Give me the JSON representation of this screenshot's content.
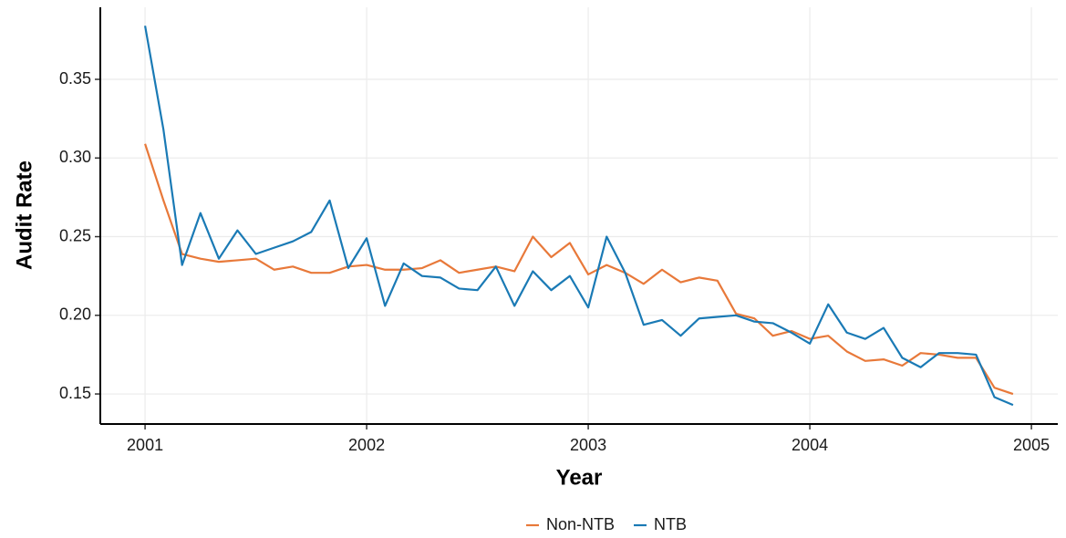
{
  "chart_data": {
    "type": "line",
    "x_label": "Year",
    "y_label": "Audit Rate",
    "x": [
      2001,
      2001.083,
      2001.167,
      2001.25,
      2001.333,
      2001.417,
      2001.5,
      2001.583,
      2001.667,
      2001.75,
      2001.833,
      2001.917,
      2002,
      2002.083,
      2002.167,
      2002.25,
      2002.333,
      2002.417,
      2002.5,
      2002.583,
      2002.667,
      2002.75,
      2002.833,
      2002.917,
      2003,
      2003.083,
      2003.167,
      2003.25,
      2003.333,
      2003.417,
      2003.5,
      2003.583,
      2003.667,
      2003.75,
      2003.833,
      2003.917,
      2004,
      2004.083,
      2004.167,
      2004.25,
      2004.333,
      2004.417,
      2004.5,
      2004.583,
      2004.667,
      2004.75,
      2004.833,
      2004.917
    ],
    "series": [
      {
        "name": "Non-NTB",
        "color": "#e8793a",
        "values": [
          0.309,
          0.273,
          0.239,
          0.236,
          0.234,
          0.235,
          0.236,
          0.229,
          0.231,
          0.227,
          0.227,
          0.231,
          0.232,
          0.229,
          0.229,
          0.23,
          0.235,
          0.227,
          0.229,
          0.231,
          0.228,
          0.25,
          0.237,
          0.246,
          0.226,
          0.232,
          0.227,
          0.22,
          0.229,
          0.221,
          0.224,
          0.222,
          0.201,
          0.198,
          0.187,
          0.19,
          0.185,
          0.187,
          0.177,
          0.171,
          0.172,
          0.168,
          0.176,
          0.175,
          0.173,
          0.173,
          0.154,
          0.15
        ]
      },
      {
        "name": "NTB",
        "color": "#1a7ab5",
        "values": [
          0.384,
          0.318,
          0.232,
          0.265,
          0.236,
          0.254,
          0.239,
          0.243,
          0.247,
          0.253,
          0.273,
          0.23,
          0.249,
          0.206,
          0.233,
          0.225,
          0.224,
          0.217,
          0.216,
          0.231,
          0.206,
          0.228,
          0.216,
          0.225,
          0.205,
          0.25,
          0.227,
          0.194,
          0.197,
          0.187,
          0.198,
          0.199,
          0.2,
          0.196,
          0.195,
          0.189,
          0.182,
          0.207,
          0.189,
          0.185,
          0.192,
          0.173,
          0.167,
          0.176,
          0.176,
          0.175,
          0.148,
          0.143
        ]
      }
    ],
    "xlim": [
      2000.798,
      2005.119
    ],
    "xticks": [
      2001,
      2002,
      2003,
      2004,
      2005
    ],
    "ylim": [
      0.1309,
      0.3958
    ],
    "yticks": [
      0.15,
      {
        "value": 0.2,
        "label": "0.20"
      },
      0.25,
      {
        "value": 0.3,
        "label": "0.30"
      },
      0.35
    ],
    "grid": true,
    "legend": "bottom"
  }
}
